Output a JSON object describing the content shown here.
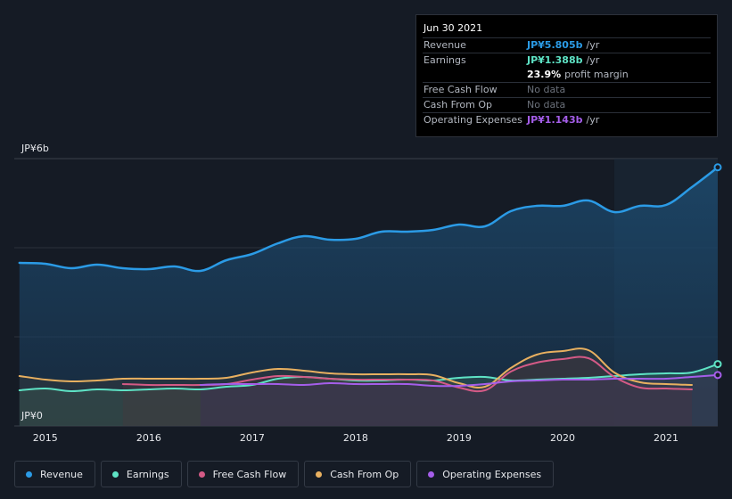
{
  "tooltip": {
    "date": "Jun 30 2021",
    "rows": {
      "revenue": {
        "label": "Revenue",
        "value": "JP¥5.805b",
        "unit": "/yr",
        "color": "#2b9be6"
      },
      "earnings": {
        "label": "Earnings",
        "value": "JP¥1.388b",
        "unit": "/yr",
        "color": "#5ee3c5"
      },
      "profit_margin": {
        "value": "23.9%",
        "text": "profit margin"
      },
      "free_cash_flow": {
        "label": "Free Cash Flow",
        "value": "No data"
      },
      "cash_from_op": {
        "label": "Cash From Op",
        "value": "No data"
      },
      "operating_expenses": {
        "label": "Operating Expenses",
        "value": "JP¥1.143b",
        "unit": "/yr",
        "color": "#a55eea"
      }
    }
  },
  "legend": [
    {
      "label": "Revenue",
      "color": "#2b9be6"
    },
    {
      "label": "Earnings",
      "color": "#5ee3c5"
    },
    {
      "label": "Free Cash Flow",
      "color": "#d45a86"
    },
    {
      "label": "Cash From Op",
      "color": "#e8b060"
    },
    {
      "label": "Operating Expenses",
      "color": "#a55eea"
    }
  ],
  "chart_data": {
    "type": "area",
    "ylim": [
      0,
      6
    ],
    "y_unit": "JP¥b",
    "y_tick_labels": [
      "JP¥6b",
      "JP¥0"
    ],
    "x_tick_labels": [
      "2015",
      "2016",
      "2017",
      "2018",
      "2019",
      "2020",
      "2021"
    ],
    "xlim": [
      2014.7,
      2021.5
    ],
    "grid": true,
    "forecast_shading_start": 2020.5,
    "series": [
      {
        "name": "Revenue",
        "color": "#2b9be6",
        "x": [
          2014.75,
          2015.0,
          2015.25,
          2015.5,
          2015.75,
          2016.0,
          2016.25,
          2016.5,
          2016.75,
          2017.0,
          2017.25,
          2017.5,
          2017.75,
          2018.0,
          2018.25,
          2018.5,
          2018.75,
          2019.0,
          2019.25,
          2019.5,
          2019.75,
          2020.0,
          2020.25,
          2020.5,
          2020.75,
          2021.0,
          2021.25,
          2021.5
        ],
        "values": [
          3.66,
          3.64,
          3.54,
          3.62,
          3.54,
          3.52,
          3.58,
          3.48,
          3.72,
          3.86,
          4.1,
          4.26,
          4.18,
          4.2,
          4.36,
          4.36,
          4.4,
          4.52,
          4.48,
          4.82,
          4.94,
          4.94,
          5.06,
          4.8,
          4.94,
          4.96,
          5.36,
          5.805
        ]
      },
      {
        "name": "Earnings",
        "color": "#5ee3c5",
        "x": [
          2014.75,
          2015.0,
          2015.25,
          2015.5,
          2015.75,
          2016.0,
          2016.25,
          2016.5,
          2016.75,
          2017.0,
          2017.25,
          2017.5,
          2017.75,
          2018.0,
          2018.25,
          2018.5,
          2018.75,
          2019.0,
          2019.25,
          2019.5,
          2019.75,
          2020.0,
          2020.25,
          2020.5,
          2020.75,
          2021.0,
          2021.25,
          2021.5
        ],
        "values": [
          0.8,
          0.84,
          0.78,
          0.82,
          0.8,
          0.82,
          0.84,
          0.82,
          0.88,
          0.92,
          1.06,
          1.1,
          1.06,
          1.02,
          1.02,
          1.04,
          1.02,
          1.08,
          1.1,
          1.02,
          1.04,
          1.06,
          1.08,
          1.12,
          1.16,
          1.18,
          1.2,
          1.388
        ]
      },
      {
        "name": "Free Cash Flow",
        "color": "#d45a86",
        "x": [
          2015.75,
          2016.0,
          2016.25,
          2016.5,
          2016.75,
          2017.0,
          2017.25,
          2017.5,
          2017.75,
          2018.0,
          2018.25,
          2018.5,
          2018.75,
          2019.0,
          2019.25,
          2019.5,
          2019.75,
          2020.0,
          2020.25,
          2020.5,
          2020.75,
          2021.0,
          2021.25
        ],
        "values": [
          0.94,
          0.92,
          0.92,
          0.92,
          0.94,
          1.04,
          1.12,
          1.1,
          1.06,
          1.04,
          1.04,
          1.04,
          1.02,
          0.86,
          0.8,
          1.22,
          1.42,
          1.5,
          1.52,
          1.1,
          0.86,
          0.84,
          0.82
        ]
      },
      {
        "name": "Cash From Op",
        "color": "#e8b060",
        "x": [
          2014.75,
          2015.0,
          2015.25,
          2015.5,
          2015.75,
          2016.0,
          2016.25,
          2016.5,
          2016.75,
          2017.0,
          2017.25,
          2017.5,
          2017.75,
          2018.0,
          2018.25,
          2018.5,
          2018.75,
          2019.0,
          2019.25,
          2019.5,
          2019.75,
          2020.0,
          2020.25,
          2020.5,
          2020.75,
          2021.0,
          2021.25
        ],
        "values": [
          1.12,
          1.04,
          1.0,
          1.02,
          1.06,
          1.06,
          1.06,
          1.06,
          1.08,
          1.2,
          1.28,
          1.24,
          1.18,
          1.16,
          1.16,
          1.16,
          1.14,
          0.96,
          0.88,
          1.3,
          1.6,
          1.68,
          1.7,
          1.2,
          0.98,
          0.94,
          0.92
        ]
      },
      {
        "name": "Operating Expenses",
        "color": "#a55eea",
        "x": [
          2016.5,
          2016.75,
          2017.0,
          2017.25,
          2017.5,
          2017.75,
          2018.0,
          2018.25,
          2018.5,
          2018.75,
          2019.0,
          2019.25,
          2019.5,
          2019.75,
          2020.0,
          2020.25,
          2020.5,
          2020.75,
          2021.0,
          2021.25,
          2021.5
        ],
        "values": [
          0.92,
          0.94,
          0.94,
          0.94,
          0.92,
          0.96,
          0.94,
          0.94,
          0.94,
          0.9,
          0.9,
          0.94,
          1.0,
          1.02,
          1.04,
          1.04,
          1.06,
          1.06,
          1.06,
          1.1,
          1.143
        ]
      }
    ]
  }
}
